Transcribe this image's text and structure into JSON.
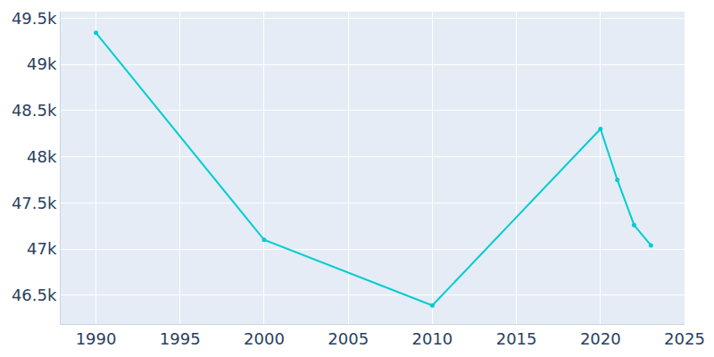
{
  "chart_data": {
    "type": "line",
    "x": [
      1990,
      2000,
      2010,
      2020,
      2021,
      2022,
      2023
    ],
    "values": [
      49340,
      47100,
      46390,
      48300,
      47750,
      47260,
      47040
    ],
    "color": "#00cdd0",
    "marker": "circle",
    "xlim": [
      1987.9,
      2025
    ],
    "xticks": [
      1990,
      1995,
      2000,
      2005,
      2010,
      2015,
      2020,
      2025
    ],
    "ylim": [
      46190,
      49570
    ],
    "yticks": [
      {
        "value": 46500,
        "label": "46.5k"
      },
      {
        "value": 47000,
        "label": "47k"
      },
      {
        "value": 47500,
        "label": "47.5k"
      },
      {
        "value": 48000,
        "label": "48k"
      },
      {
        "value": 48500,
        "label": "48.5k"
      },
      {
        "value": 49000,
        "label": "49k"
      },
      {
        "value": 49500,
        "label": "49.5k"
      }
    ],
    "grid": true
  }
}
